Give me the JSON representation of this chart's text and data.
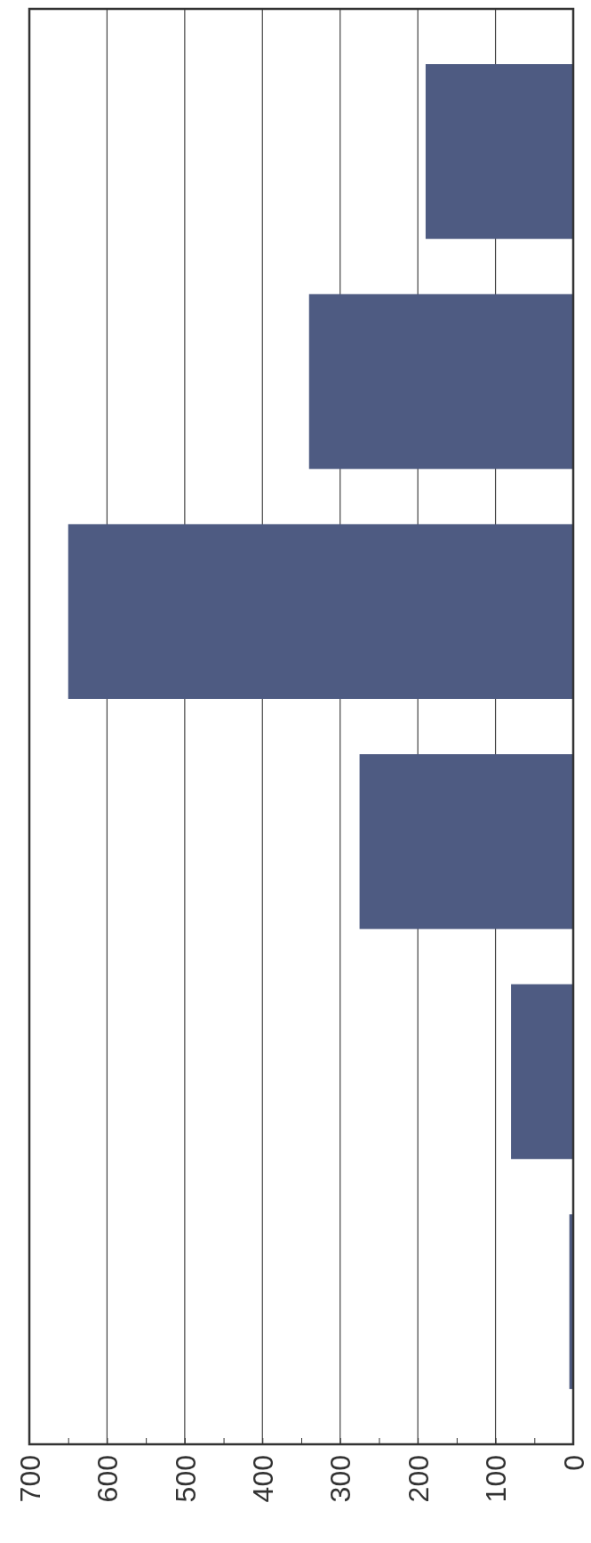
{
  "chart_data": {
    "type": "bar",
    "orientation": "horizontal",
    "categories": [
      null,
      null,
      null,
      null,
      null,
      null
    ],
    "values": [
      190,
      340,
      650,
      275,
      80,
      5
    ],
    "color": "#4e5b82",
    "xlim": [
      700,
      0
    ],
    "xticks": [
      700,
      {
        "value": 650,
        "label": null
      },
      600,
      {
        "value": 550,
        "label": null
      },
      500,
      {
        "value": 450,
        "label": null
      },
      400,
      {
        "value": 350,
        "label": null
      },
      300,
      {
        "value": 250,
        "label": null
      },
      200,
      {
        "value": 150,
        "label": null
      },
      100,
      {
        "value": 50,
        "label": null
      },
      0
    ],
    "grid": "x",
    "tick_labels": "x"
  }
}
